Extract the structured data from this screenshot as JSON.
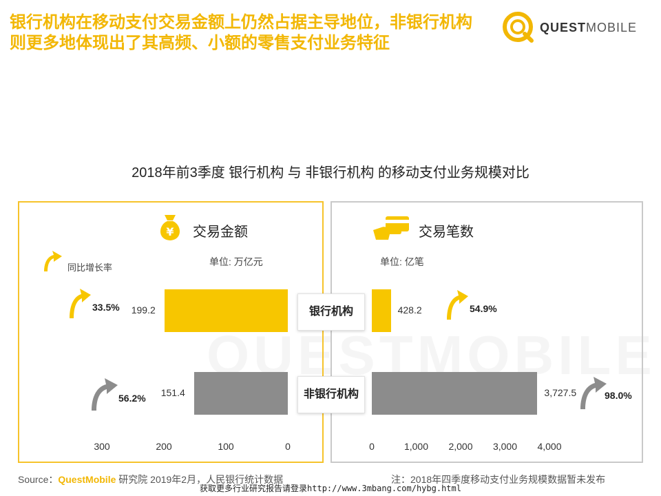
{
  "headline": [
    "银行机构在移动支付交易金额上仍然占据主导地位，非银行机构",
    "则更多地体现出了其高频、小额的零售支付业务特征"
  ],
  "logo": {
    "strong": "QUEST",
    "light": "MOBILE"
  },
  "watermark": "QUESTMOBILE",
  "colors": {
    "bank": "#f7c600",
    "nonbank": "#8c8c8c",
    "accent": "#f2b705"
  },
  "chart_data": [
    {
      "type": "bar",
      "title": "2018年前3季度 银行机构 与 非银行机构 的移动支付业务规模对比",
      "panel_label": "交易金额",
      "icon": "money-bag-icon",
      "unit": "单位: 万亿元",
      "yoy_title": "同比增长率",
      "categories": [
        "银行机构",
        "非银行机构"
      ],
      "values": [
        199.2,
        151.4
      ],
      "value_labels": [
        "199.2",
        "151.4"
      ],
      "yoy": [
        "33.5%",
        "56.2%"
      ],
      "xlim": [
        0,
        300
      ],
      "direction": "reversed",
      "ticks": [
        300,
        200,
        100,
        0
      ],
      "tick_labels": [
        "300",
        "200",
        "100",
        "0"
      ]
    },
    {
      "type": "bar",
      "panel_label": "交易笔数",
      "icon": "card-hand-icon",
      "unit": "单位: 亿笔",
      "categories": [
        "银行机构",
        "非银行机构"
      ],
      "values": [
        428.2,
        3727.5
      ],
      "value_labels": [
        "428.2",
        "3,727.5"
      ],
      "yoy": [
        "54.9%",
        "98.0%"
      ],
      "xlim": [
        0,
        4000
      ],
      "ticks": [
        0,
        1000,
        2000,
        3000,
        4000
      ],
      "tick_labels": [
        "0",
        "1,000",
        "2,000",
        "3,000",
        "4,000"
      ]
    }
  ],
  "footer": {
    "source_prefix": "Source：",
    "source_brand": "QuestMobile",
    "source_rest": " 研究院 2019年2月，人民银行统计数据",
    "note": "注：2018年四季度移动支付业务规模数据暂未发布",
    "link": "获取更多行业研究报告请登录http://www.3mbang.com/hybg.html"
  }
}
